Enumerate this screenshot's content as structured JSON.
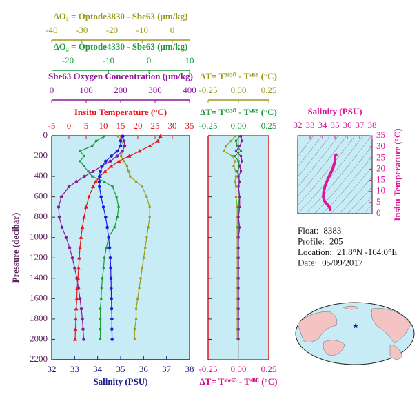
{
  "chart_data": [
    {
      "type": "profile",
      "y_label": "Pressure (decibar)",
      "ylim": [
        0,
        2200
      ],
      "y_inverted": true,
      "yticks": [
        0,
        200,
        400,
        600,
        800,
        1000,
        1200,
        1400,
        1600,
        1800,
        2000,
        2200
      ],
      "pressure": [
        5,
        50,
        100,
        150,
        200,
        250,
        300,
        350,
        400,
        450,
        500,
        600,
        700,
        800,
        900,
        1000,
        1100,
        1200,
        1300,
        1400,
        1500,
        1600,
        1700,
        1800,
        1900,
        2000
      ],
      "x_axes": [
        {
          "title": "Insitu Temperature (°C)",
          "color": "#e8141a",
          "position": "top",
          "xlim": [
            -5,
            35
          ],
          "xticks": [
            -5,
            0,
            5,
            10,
            15,
            20,
            25,
            30,
            35
          ]
        },
        {
          "title": "Sbe63 Oxygen Concentration (μm/kg)",
          "color": "#8b1a9b",
          "position": "top",
          "xlim": [
            0,
            400
          ],
          "xticks": [
            0,
            100,
            200,
            300,
            400
          ]
        },
        {
          "title": "ΔO₂ = Optode4330 - Sbe63   (μm/kg)",
          "color": "#1a9a3a",
          "position": "top",
          "xlim": [
            -24,
            10
          ],
          "xticks": [
            -20,
            -10,
            0,
            10
          ]
        },
        {
          "title": "ΔO₂ = Optode3830 - Sbe63   (μm/kg)",
          "color": "#9b9b1a",
          "position": "top",
          "xlim": [
            -40,
            5.7
          ],
          "xticks": [
            -40,
            -30,
            -20,
            -10,
            0
          ]
        },
        {
          "title": "Salinity (PSU)",
          "color": "#1a1a8a",
          "position": "bottom",
          "xlim": [
            32,
            38
          ],
          "xticks": [
            32,
            33,
            34,
            35,
            36,
            37,
            38
          ]
        }
      ],
      "series": [
        {
          "axis": 3,
          "color": "#9b9b1a",
          "marker": "square",
          "values": [
            -18,
            -17,
            -16,
            -16.5,
            -17,
            -16,
            -15,
            -14.5,
            -14,
            -12,
            -10,
            -8.5,
            -7.5,
            -7.5,
            -8,
            -8.5,
            -9,
            -9.5,
            -10,
            -10.5,
            -11,
            -11.5,
            -12,
            -12,
            -12.5,
            -12.5
          ]
        },
        {
          "axis": 2,
          "color": "#1a9a3a",
          "marker": "square",
          "values": [
            -11,
            -13,
            -14,
            -17,
            -16,
            -17,
            -16,
            -15,
            -14,
            -11,
            -9,
            -8,
            -7.5,
            -7.8,
            -8.5,
            -10,
            -10.5,
            -11,
            -11.2,
            -11.5,
            -11.7,
            -11.8,
            -12,
            -12,
            -12,
            -12
          ]
        },
        {
          "axis": 1,
          "color": "#8b1a9b",
          "marker": "circle",
          "values": [
            205,
            210,
            212,
            205,
            190,
            170,
            145,
            120,
            95,
            72,
            50,
            28,
            20,
            22,
            30,
            42,
            52,
            60,
            67,
            73,
            78,
            82,
            86,
            89,
            91,
            93
          ]
        },
        {
          "axis": 0,
          "color": "#e8141a",
          "marker": "triangle",
          "values": [
            26.5,
            25.8,
            23.5,
            20.5,
            17.5,
            14.5,
            12.3,
            10.5,
            9,
            7.8,
            7,
            5.8,
            5,
            4.4,
            3.9,
            3.5,
            3.2,
            3,
            2.8,
            2.6,
            2.4,
            2.3,
            2.1,
            2,
            1.9,
            1.8
          ]
        },
        {
          "axis": 4,
          "color": "#1a1ae8",
          "marker": "circle",
          "values": [
            35.1,
            35.0,
            35.0,
            34.85,
            34.6,
            34.35,
            34.2,
            34.12,
            34.08,
            34.07,
            34.08,
            34.15,
            34.25,
            34.35,
            34.42,
            34.48,
            34.52,
            34.55,
            34.57,
            34.58,
            34.59,
            34.6,
            34.61,
            34.62,
            34.62,
            34.63
          ]
        }
      ]
    },
    {
      "type": "profile",
      "ylim": [
        0,
        2200
      ],
      "y_inverted": true,
      "yticks": [
        0,
        200,
        400,
        600,
        800,
        1000,
        1200,
        1400,
        1600,
        1800,
        2000,
        2200
      ],
      "pressure": [
        5,
        50,
        100,
        150,
        200,
        250,
        300,
        350,
        400,
        450,
        500,
        600,
        700,
        800,
        900,
        1000,
        1100,
        1200,
        1300,
        1400,
        1500,
        1600,
        1700,
        1800,
        1900,
        2000
      ],
      "zero_line": true,
      "x_axes": [
        {
          "title": "ΔT= T⁴³³⁰ - Tˢᴮᴱ (°C)",
          "color": "#1a9a3a",
          "position": "top",
          "xlim": [
            -0.25,
            0.25
          ],
          "xticks": [
            -0.25,
            {
              "value": 0,
              "label": "0.00"
            },
            0.25
          ]
        },
        {
          "title": "ΔT= T³⁸³⁰ - Tˢᴮᴱ (°C)",
          "color": "#9b9b1a",
          "position": "top",
          "xlim": [
            -0.25,
            0.25
          ],
          "xticks": [
            -0.25,
            {
              "value": 0,
              "label": "0.00"
            },
            0.25
          ]
        },
        {
          "title": "ΔT= Tˢᵇᵉ⁶³ - Tˢᴮᴱ (°C)",
          "color": "#d0148a",
          "position": "bottom",
          "xlim": [
            -0.25,
            0.25
          ],
          "xticks": [
            -0.25,
            {
              "value": 0,
              "label": "0.00"
            },
            0.25
          ]
        }
      ],
      "series": [
        {
          "axis": 1,
          "color": "#9b9b1a",
          "marker": "square",
          "values": [
            -0.03,
            -0.06,
            -0.1,
            -0.12,
            -0.05,
            -0.03,
            -0.04,
            -0.02,
            -0.02,
            -0.03,
            -0.02,
            -0.02,
            -0.01,
            -0.01,
            -0.01,
            -0.01,
            -0.01,
            -0.01,
            -0.01,
            -0.01,
            -0.01,
            -0.01,
            -0.01,
            -0.01,
            -0.01,
            -0.01
          ]
        },
        {
          "axis": 0,
          "color": "#1a9a3a",
          "marker": "square",
          "values": [
            0.01,
            -0.02,
            -0.01,
            0.02,
            -0.03,
            0,
            0.01,
            -0.01,
            0,
            0.01,
            0,
            0.01,
            0,
            0,
            0,
            0,
            0,
            0,
            0,
            0,
            0,
            0,
            0,
            0,
            0,
            0
          ]
        },
        {
          "axis": 2,
          "color": "#8b1a9b",
          "marker": "square",
          "values": [
            0.02,
            0.03,
            0.01,
            -0.02,
            0.02,
            0.03,
            0.01,
            0.02,
            0,
            0.01,
            0,
            0.01,
            0.01,
            0,
            0.01,
            0,
            0,
            0,
            0,
            0,
            0,
            0,
            0,
            0,
            0,
            0
          ]
        }
      ]
    },
    {
      "type": "ts",
      "title": "Salinity (PSU)",
      "y_label": "Insitu Temperature (°C)",
      "color": "#e0149a",
      "xlim": [
        32,
        38
      ],
      "xticks": [
        32,
        33,
        34,
        35,
        36,
        37,
        38
      ],
      "ylim": [
        0,
        35
      ],
      "yticks": [
        0,
        5,
        10,
        15,
        20,
        25,
        30,
        35
      ]
    }
  ],
  "info": [
    {
      "label": "Float:",
      "value": "8383"
    },
    {
      "label": "Profile:",
      "value": "205"
    },
    {
      "label": "Location:",
      "value": "21.8°N  -164.0°E"
    },
    {
      "label": "Date:",
      "value": "05/09/2017"
    }
  ]
}
